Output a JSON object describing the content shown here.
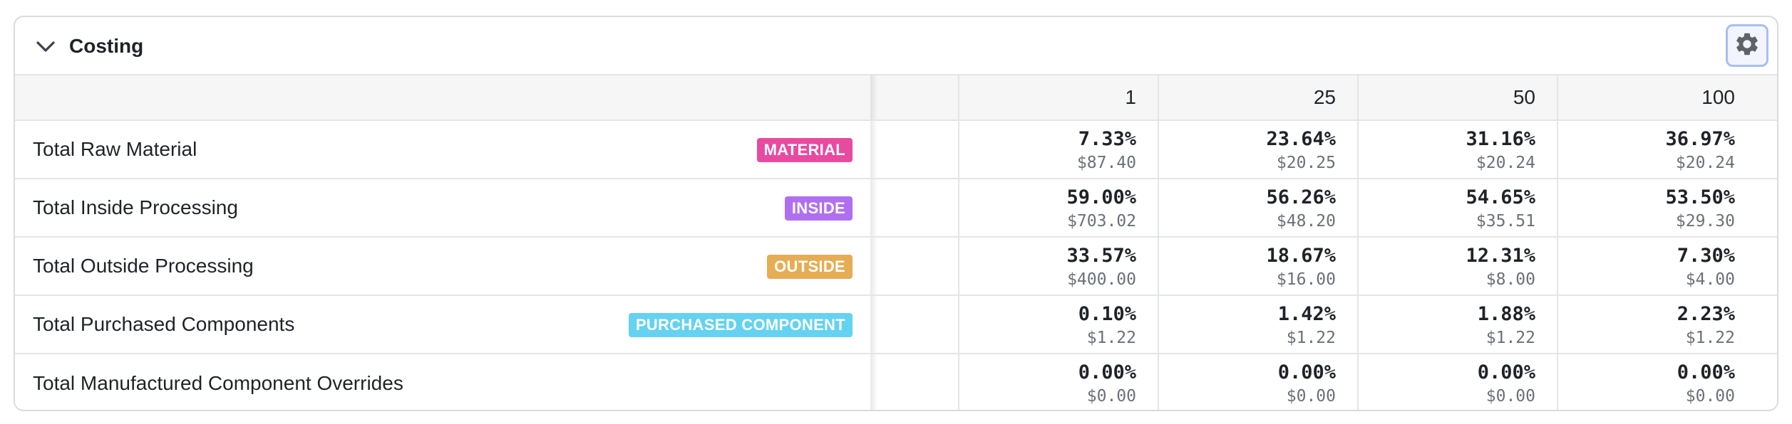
{
  "section": {
    "title": "Costing",
    "collapse_icon": "chevron-down-icon",
    "settings_icon": "gear-icon"
  },
  "columns": [
    "1",
    "25",
    "50",
    "100"
  ],
  "rows": [
    {
      "label": "Total Raw Material",
      "badge": "MATERIAL",
      "badge_color": "#e84aa0",
      "values": [
        {
          "pct": "7.33%",
          "amt": "$87.40"
        },
        {
          "pct": "23.64%",
          "amt": "$20.25"
        },
        {
          "pct": "31.16%",
          "amt": "$20.24"
        },
        {
          "pct": "36.97%",
          "amt": "$20.24"
        }
      ]
    },
    {
      "label": "Total Inside Processing",
      "badge": "INSIDE",
      "badge_color": "#b06ef0",
      "values": [
        {
          "pct": "59.00%",
          "amt": "$703.02"
        },
        {
          "pct": "56.26%",
          "amt": "$48.20"
        },
        {
          "pct": "54.65%",
          "amt": "$35.51"
        },
        {
          "pct": "53.50%",
          "amt": "$29.30"
        }
      ]
    },
    {
      "label": "Total Outside Processing",
      "badge": "OUTSIDE",
      "badge_color": "#e6ad55",
      "values": [
        {
          "pct": "33.57%",
          "amt": "$400.00"
        },
        {
          "pct": "18.67%",
          "amt": "$16.00"
        },
        {
          "pct": "12.31%",
          "amt": "$8.00"
        },
        {
          "pct": "7.30%",
          "amt": "$4.00"
        }
      ]
    },
    {
      "label": "Total Purchased Components",
      "badge": "PURCHASED COMPONENT",
      "badge_color": "#64d2f0",
      "values": [
        {
          "pct": "0.10%",
          "amt": "$1.22"
        },
        {
          "pct": "1.42%",
          "amt": "$1.22"
        },
        {
          "pct": "1.88%",
          "amt": "$1.22"
        },
        {
          "pct": "2.23%",
          "amt": "$1.22"
        }
      ]
    },
    {
      "label": "Total Manufactured Component Overrides",
      "badge": "",
      "badge_color": "",
      "values": [
        {
          "pct": "0.00%",
          "amt": "$0.00"
        },
        {
          "pct": "0.00%",
          "amt": "$0.00"
        },
        {
          "pct": "0.00%",
          "amt": "$0.00"
        },
        {
          "pct": "0.00%",
          "amt": "$0.00"
        }
      ]
    }
  ]
}
